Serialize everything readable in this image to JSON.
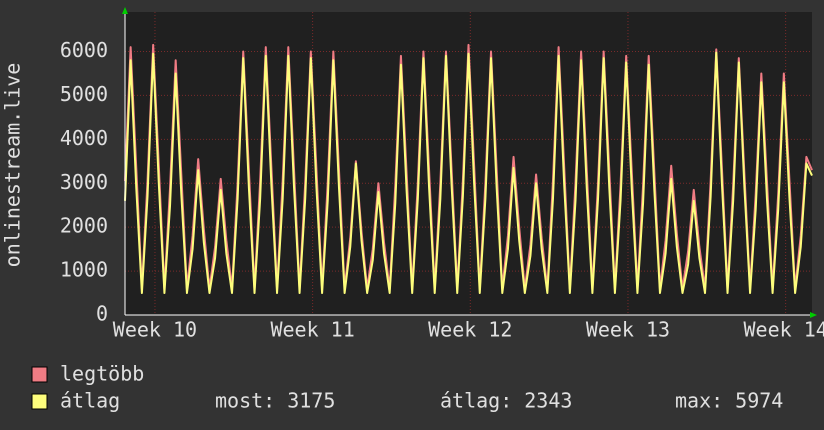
{
  "chart_data": {
    "type": "line",
    "ylabel": "onlinestream.live",
    "x": [
      0,
      0.25,
      0.5,
      0.75,
      1,
      1.25,
      1.5,
      1.75,
      2,
      2.25,
      2.5,
      2.75,
      3,
      3.25,
      3.5,
      3.75,
      4,
      4.25,
      4.5,
      4.75,
      5,
      5.25,
      5.5,
      5.75,
      6,
      6.25,
      6.5,
      6.75,
      7,
      7.25,
      7.5,
      7.75,
      8,
      8.25,
      8.5,
      8.75,
      9,
      9.25,
      9.5,
      9.75,
      10,
      10.25,
      10.5,
      10.75,
      11,
      11.25,
      11.5,
      11.75,
      12,
      12.25,
      12.5,
      12.75,
      13,
      13.25,
      13.5,
      13.75,
      14,
      14.25,
      14.5,
      14.75,
      15,
      15.25,
      15.5,
      15.75,
      16,
      16.25,
      16.5,
      16.75,
      17,
      17.25,
      17.5,
      17.75,
      18,
      18.25,
      18.5,
      18.75,
      19,
      19.25,
      19.5,
      19.75,
      20,
      20.25,
      20.5,
      20.75,
      21,
      21.25,
      21.5,
      21.75,
      22,
      22.25,
      22.5,
      22.75,
      23,
      23.25,
      23.5,
      23.75,
      24,
      24.25,
      24.5,
      24.75,
      25,
      25.25,
      25.5,
      25.75,
      26,
      26.25,
      26.5,
      26.75,
      27,
      27.25,
      27.5,
      27.75,
      28,
      28.25,
      28.5,
      28.75,
      29,
      29.25,
      29.5,
      29.75,
      30,
      30.25,
      30.5
    ],
    "series": [
      {
        "name": "legtöbb",
        "color": "#f07c84",
        "values": [
          3050,
          6100,
          3350,
          600,
          3050,
          6150,
          3400,
          600,
          2900,
          5800,
          3200,
          600,
          1800,
          3550,
          1950,
          600,
          1550,
          3100,
          1700,
          600,
          3000,
          6000,
          3300,
          600,
          3050,
          6100,
          3350,
          600,
          3050,
          6100,
          3350,
          600,
          3000,
          6000,
          3300,
          600,
          3000,
          6000,
          3300,
          600,
          1750,
          3500,
          1900,
          600,
          1500,
          3000,
          1650,
          600,
          2950,
          5900,
          3250,
          600,
          3000,
          6000,
          3300,
          600,
          3000,
          6000,
          3300,
          600,
          3050,
          6150,
          3400,
          600,
          3000,
          6000,
          3300,
          600,
          1800,
          3600,
          2000,
          600,
          1600,
          3200,
          1750,
          600,
          3050,
          6100,
          3350,
          600,
          3000,
          6000,
          3300,
          600,
          3000,
          6000,
          3300,
          600,
          2950,
          5900,
          3250,
          600,
          2950,
          5900,
          3250,
          600,
          1700,
          3400,
          1850,
          600,
          1450,
          2850,
          1550,
          600,
          3050,
          6050,
          3350,
          600,
          2950,
          5850,
          3200,
          600,
          2750,
          5500,
          3050,
          600,
          2750,
          5500,
          3050,
          600,
          1800,
          3600,
          3300
        ]
      },
      {
        "name": "átlag",
        "color": "#fdfd7c",
        "values": [
          2600,
          5800,
          2900,
          500,
          2700,
          5950,
          3000,
          500,
          2500,
          5500,
          2750,
          500,
          1500,
          3300,
          1650,
          500,
          1300,
          2850,
          1400,
          500,
          2650,
          5850,
          2900,
          500,
          2650,
          5900,
          2950,
          500,
          2650,
          5900,
          2950,
          500,
          2650,
          5850,
          2900,
          500,
          2600,
          5800,
          2900,
          500,
          1550,
          3450,
          1700,
          500,
          1250,
          2800,
          1400,
          500,
          2550,
          5700,
          2850,
          500,
          2650,
          5850,
          2900,
          500,
          2650,
          5900,
          2950,
          500,
          2700,
          5950,
          3000,
          500,
          2650,
          5850,
          2900,
          500,
          1500,
          3350,
          1700,
          500,
          1350,
          3000,
          1500,
          500,
          2650,
          5900,
          2950,
          500,
          2600,
          5800,
          2900,
          500,
          2650,
          5850,
          2900,
          500,
          2600,
          5750,
          2850,
          500,
          2550,
          5700,
          2850,
          500,
          1400,
          3100,
          1550,
          500,
          1150,
          2600,
          1300,
          500,
          2700,
          5974,
          3000,
          500,
          2600,
          5750,
          2900,
          500,
          2400,
          5300,
          2650,
          500,
          2400,
          5300,
          2650,
          500,
          1550,
          3450,
          3175
        ]
      }
    ],
    "xlim": [
      0,
      30.5
    ],
    "xticks": [
      {
        "value": 1.33,
        "label": "Week 10"
      },
      {
        "value": 8.33,
        "label": "Week 11"
      },
      {
        "value": 15.33,
        "label": "Week 12"
      },
      {
        "value": 22.33,
        "label": "Week 13"
      },
      {
        "value": 29.33,
        "label": "Week 14"
      }
    ],
    "ylim": [
      0,
      6900
    ],
    "yticks": [
      0,
      1000,
      2000,
      3000,
      4000,
      5000,
      6000
    ],
    "grid": true,
    "stats": [
      {
        "label": "most:",
        "value": 3175
      },
      {
        "label": "átlag:",
        "value": 2343
      },
      {
        "label": "max:",
        "value": 5974
      }
    ]
  }
}
